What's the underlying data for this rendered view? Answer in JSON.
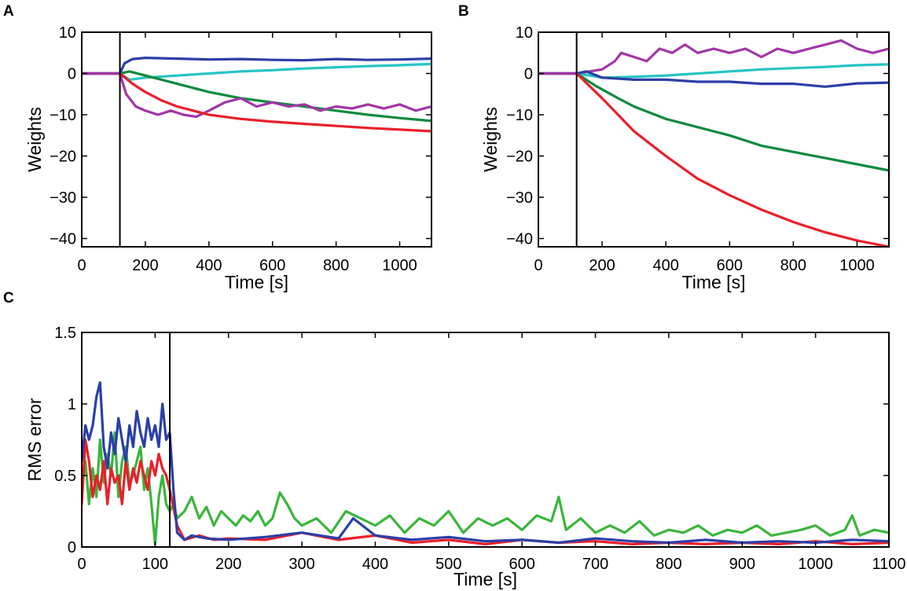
{
  "panels": [
    {
      "id": "A",
      "label": "A",
      "chart_data": {
        "type": "line",
        "xlabel": "Time [s]",
        "ylabel": "Weights",
        "xlim": [
          0,
          1100
        ],
        "ylim": [
          -42,
          10
        ],
        "xticks": [
          0,
          200,
          400,
          600,
          800,
          1000
        ],
        "yticks": [
          10,
          0,
          -10,
          -20,
          -30,
          -40
        ],
        "xtick_labels": [
          "0",
          "200",
          "400",
          "600",
          "800",
          "1000"
        ],
        "ytick_labels": [
          "10",
          "0",
          "−10",
          "−20",
          "−30",
          "−40"
        ],
        "vline_x": 120,
        "series": [
          {
            "name": "blue",
            "color": "#2b3fa8",
            "x": [
              0,
              120,
              135,
              160,
              200,
              300,
              400,
              500,
              600,
              700,
              800,
              900,
              1000,
              1100
            ],
            "y": [
              0,
              0,
              2.5,
              3.5,
              3.8,
              3.6,
              3.4,
              3.5,
              3.3,
              3.2,
              3.5,
              3.3,
              3.4,
              3.6
            ]
          },
          {
            "name": "cyan",
            "color": "#27c4c4",
            "x": [
              0,
              120,
              150,
              200,
              300,
              400,
              500,
              600,
              700,
              800,
              900,
              1000,
              1100
            ],
            "y": [
              0,
              0,
              -1.5,
              -1,
              -0.5,
              0,
              0.5,
              0.8,
              1.2,
              1.5,
              1.8,
              2.0,
              2.3
            ]
          },
          {
            "name": "green",
            "color": "#0e8a3e",
            "x": [
              0,
              120,
              150,
              200,
              300,
              400,
              500,
              600,
              700,
              800,
              900,
              1000,
              1100
            ],
            "y": [
              0,
              0,
              0.5,
              -0.5,
              -2.5,
              -4.5,
              -6,
              -7,
              -8,
              -9,
              -10,
              -10.8,
              -11.5
            ]
          },
          {
            "name": "magenta",
            "color": "#a235a8",
            "x": [
              0,
              120,
              140,
              170,
              200,
              240,
              280,
              320,
              360,
              400,
              450,
              500,
              550,
              600,
              650,
              700,
              750,
              800,
              850,
              900,
              950,
              1000,
              1050,
              1100
            ],
            "y": [
              0,
              0,
              -5,
              -8,
              -9,
              -10,
              -9,
              -10,
              -10.5,
              -9,
              -7,
              -6,
              -8,
              -7,
              -8,
              -7.5,
              -9,
              -8,
              -8.5,
              -7.5,
              -8.5,
              -7.5,
              -9,
              -8
            ]
          },
          {
            "name": "red",
            "color": "#e8202a",
            "x": [
              0,
              120,
              160,
              200,
              250,
              300,
              400,
              500,
              600,
              700,
              800,
              900,
              1000,
              1100
            ],
            "y": [
              0,
              0,
              -2.5,
              -4.5,
              -6.5,
              -8,
              -10,
              -11,
              -11.7,
              -12.2,
              -12.7,
              -13.2,
              -13.6,
              -14.0
            ]
          },
          {
            "name": "purple-pre",
            "color": "#a235a8",
            "x": [
              0,
              120
            ],
            "y": [
              0,
              0
            ]
          }
        ]
      }
    },
    {
      "id": "B",
      "label": "B",
      "chart_data": {
        "type": "line",
        "xlabel": "Time [s]",
        "ylabel": "Weights",
        "xlim": [
          0,
          1100
        ],
        "ylim": [
          -42,
          10
        ],
        "xticks": [
          0,
          200,
          400,
          600,
          800,
          1000
        ],
        "yticks": [
          10,
          0,
          -10,
          -20,
          -30,
          -40
        ],
        "xtick_labels": [
          "0",
          "200",
          "400",
          "600",
          "800",
          "1000"
        ],
        "ytick_labels": [
          "10",
          "0",
          "−10",
          "−20",
          "−30",
          "−40"
        ],
        "vline_x": 120,
        "series": [
          {
            "name": "magenta",
            "color": "#a235a8",
            "x": [
              0,
              120,
              160,
              200,
              240,
              260,
              300,
              340,
              380,
              420,
              460,
              500,
              550,
              600,
              650,
              700,
              750,
              800,
              850,
              900,
              950,
              1000,
              1050,
              1100
            ],
            "y": [
              0,
              0,
              0.5,
              1,
              3,
              5,
              4,
              3,
              6,
              5,
              7,
              5,
              6,
              5,
              6,
              4,
              6,
              5,
              6,
              7,
              8,
              6,
              5,
              6
            ]
          },
          {
            "name": "cyan",
            "color": "#27c4c4",
            "x": [
              0,
              120,
              160,
              200,
              300,
              400,
              500,
              600,
              700,
              800,
              900,
              1000,
              1100
            ],
            "y": [
              0,
              0,
              -0.5,
              -1,
              -0.8,
              -0.5,
              0,
              0.5,
              1,
              1.3,
              1.6,
              2,
              2.2
            ]
          },
          {
            "name": "blue",
            "color": "#2b3fa8",
            "x": [
              0,
              120,
              150,
              200,
              300,
              400,
              500,
              600,
              700,
              800,
              900,
              1000,
              1100
            ],
            "y": [
              0,
              0,
              0.5,
              -1,
              -1.5,
              -1.5,
              -2,
              -2,
              -2.5,
              -2.5,
              -3.2,
              -2.4,
              -2.2
            ]
          },
          {
            "name": "green",
            "color": "#0e8a3e",
            "x": [
              0,
              120,
              180,
              250,
              300,
              400,
              500,
              600,
              700,
              800,
              900,
              1000,
              1100
            ],
            "y": [
              0,
              0,
              -3,
              -6,
              -8,
              -11,
              -13,
              -15,
              -17.5,
              -19,
              -20.5,
              -22,
              -23.5
            ]
          },
          {
            "name": "red",
            "color": "#e8202a",
            "x": [
              0,
              120,
              160,
              200,
              250,
              300,
              350,
              400,
              500,
              600,
              700,
              800,
              900,
              1000,
              1100
            ],
            "y": [
              0,
              0,
              -3,
              -6,
              -10,
              -14,
              -17,
              -20,
              -25.5,
              -29.5,
              -33,
              -36,
              -38.5,
              -40.5,
              -42
            ]
          },
          {
            "name": "purple-pre",
            "color": "#a235a8",
            "x": [
              0,
              120
            ],
            "y": [
              0,
              0
            ]
          }
        ]
      }
    },
    {
      "id": "C",
      "label": "C",
      "chart_data": {
        "type": "line",
        "xlabel": "Time [s]",
        "ylabel": "RMS error",
        "xlim": [
          0,
          1100
        ],
        "ylim": [
          0,
          1.5
        ],
        "xticks": [
          0,
          100,
          200,
          300,
          400,
          500,
          600,
          700,
          800,
          900,
          1000,
          1100
        ],
        "yticks": [
          1.5,
          1,
          0.5,
          0
        ],
        "xtick_labels": [
          "0",
          "100",
          "200",
          "300",
          "400",
          "500",
          "600",
          "700",
          "800",
          "900",
          "1000",
          "1100"
        ],
        "ytick_labels": [
          "1.5",
          "1",
          "0.5",
          "0"
        ],
        "vline_x": 120,
        "series": [
          {
            "name": "green",
            "color": "#3bb53b",
            "x": [
              0,
              5,
              10,
              15,
              20,
              25,
              30,
              35,
              40,
              45,
              50,
              55,
              60,
              65,
              70,
              75,
              80,
              85,
              90,
              95,
              100,
              105,
              110,
              115,
              120,
              125,
              130,
              140,
              150,
              160,
              170,
              180,
              190,
              200,
              210,
              220,
              230,
              240,
              250,
              260,
              270,
              280,
              290,
              300,
              320,
              340,
              360,
              380,
              400,
              420,
              440,
              460,
              480,
              500,
              520,
              540,
              560,
              580,
              600,
              620,
              640,
              650,
              660,
              680,
              700,
              720,
              740,
              760,
              780,
              800,
              820,
              840,
              860,
              880,
              900,
              920,
              940,
              960,
              980,
              1000,
              1020,
              1040,
              1050,
              1060,
              1080,
              1100
            ],
            "y": [
              0.4,
              0.6,
              0.3,
              0.55,
              0.35,
              0.75,
              0.45,
              0.65,
              0.5,
              0.8,
              0.35,
              0.6,
              0.7,
              0.45,
              0.5,
              0.6,
              0.7,
              0.4,
              0.55,
              0.3,
              0.02,
              0.35,
              0.5,
              0.3,
              0.25,
              0.3,
              0.2,
              0.25,
              0.35,
              0.2,
              0.28,
              0.15,
              0.25,
              0.2,
              0.15,
              0.22,
              0.18,
              0.25,
              0.15,
              0.2,
              0.38,
              0.3,
              0.2,
              0.15,
              0.2,
              0.1,
              0.25,
              0.2,
              0.15,
              0.22,
              0.1,
              0.2,
              0.15,
              0.25,
              0.1,
              0.2,
              0.15,
              0.2,
              0.12,
              0.22,
              0.18,
              0.35,
              0.12,
              0.2,
              0.1,
              0.15,
              0.1,
              0.18,
              0.08,
              0.12,
              0.1,
              0.15,
              0.08,
              0.12,
              0.1,
              0.15,
              0.08,
              0.1,
              0.12,
              0.15,
              0.08,
              0.12,
              0.22,
              0.08,
              0.12,
              0.1
            ]
          },
          {
            "name": "red",
            "color": "#e8202a",
            "x": [
              0,
              5,
              10,
              15,
              20,
              25,
              30,
              35,
              40,
              45,
              50,
              55,
              60,
              65,
              70,
              75,
              80,
              85,
              90,
              95,
              100,
              105,
              110,
              115,
              120,
              130,
              140,
              160,
              180,
              200,
              250,
              300,
              350,
              400,
              450,
              500,
              550,
              600,
              650,
              700,
              750,
              800,
              850,
              900,
              950,
              1000,
              1050,
              1100
            ],
            "y": [
              0.3,
              0.75,
              0.6,
              0.35,
              0.5,
              0.4,
              0.6,
              0.3,
              0.55,
              0.45,
              0.5,
              0.3,
              0.6,
              0.4,
              0.55,
              0.45,
              0.6,
              0.5,
              0.4,
              0.6,
              0.5,
              0.65,
              0.55,
              0.5,
              0.4,
              0.15,
              0.05,
              0.08,
              0.05,
              0.06,
              0.05,
              0.1,
              0.05,
              0.08,
              0.03,
              0.05,
              0.02,
              0.05,
              0.03,
              0.04,
              0.02,
              0.03,
              0.02,
              0.03,
              0.02,
              0.04,
              0.02,
              0.03
            ]
          },
          {
            "name": "blue",
            "color": "#2b3fa8",
            "x": [
              0,
              5,
              10,
              15,
              20,
              25,
              30,
              35,
              40,
              45,
              50,
              55,
              60,
              65,
              70,
              75,
              80,
              85,
              90,
              95,
              100,
              105,
              110,
              115,
              120,
              125,
              130,
              140,
              150,
              170,
              200,
              250,
              300,
              350,
              370,
              400,
              450,
              500,
              550,
              600,
              650,
              700,
              750,
              800,
              850,
              900,
              950,
              1000,
              1050,
              1100
            ],
            "y": [
              0.6,
              0.85,
              0.75,
              0.85,
              1.05,
              1.15,
              0.7,
              0.55,
              0.8,
              0.65,
              0.9,
              0.75,
              0.6,
              0.85,
              0.7,
              0.95,
              0.8,
              0.7,
              0.9,
              0.75,
              0.85,
              0.7,
              1.0,
              0.75,
              0.8,
              0.4,
              0.1,
              0.05,
              0.08,
              0.06,
              0.05,
              0.07,
              0.1,
              0.06,
              0.2,
              0.08,
              0.05,
              0.07,
              0.04,
              0.05,
              0.03,
              0.06,
              0.04,
              0.03,
              0.05,
              0.03,
              0.04,
              0.03,
              0.05,
              0.04
            ]
          }
        ]
      }
    }
  ]
}
